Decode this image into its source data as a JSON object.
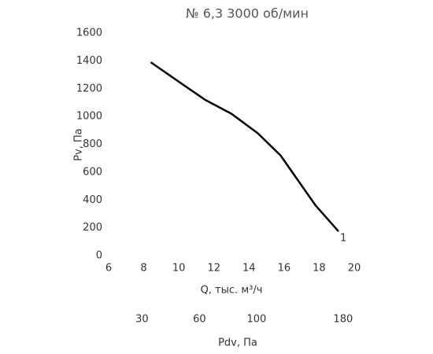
{
  "chart_data": {
    "type": "line",
    "title": "№ 6,3 3000 об/мин",
    "x_label": "Q, тыс. м³/ч",
    "y_label": "Pv, Па",
    "x2_label": "Pdv, Па",
    "series": [
      {
        "name": "1",
        "color": "#000000",
        "x": [
          8.4,
          10,
          11.5,
          13,
          14.5,
          15.8,
          16.8,
          17.8,
          19.1
        ],
        "values": [
          1390,
          1250,
          1120,
          1020,
          880,
          720,
          540,
          360,
          175
        ]
      }
    ],
    "xlim": [
      6,
      20
    ],
    "xticks": [
      6,
      8,
      10,
      12,
      14,
      16,
      18,
      20
    ],
    "ylim": [
      0,
      1600
    ],
    "yticks": [
      0,
      200,
      400,
      600,
      800,
      1000,
      1200,
      1400,
      1600
    ],
    "x2lim": [
      17.3,
      192
    ],
    "x2scale": "square",
    "x2ticks": [
      30,
      60,
      100,
      180
    ],
    "grid": false
  }
}
